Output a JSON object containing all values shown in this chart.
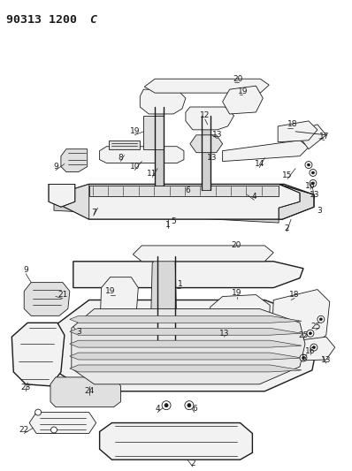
{
  "title": "90313 1200 C",
  "background_color": "#ffffff",
  "line_color": "#1a1a1a",
  "figsize": [
    3.98,
    5.33
  ],
  "dpi": 100,
  "title_fontsize": 9.5,
  "label_fontsize": 6.5
}
